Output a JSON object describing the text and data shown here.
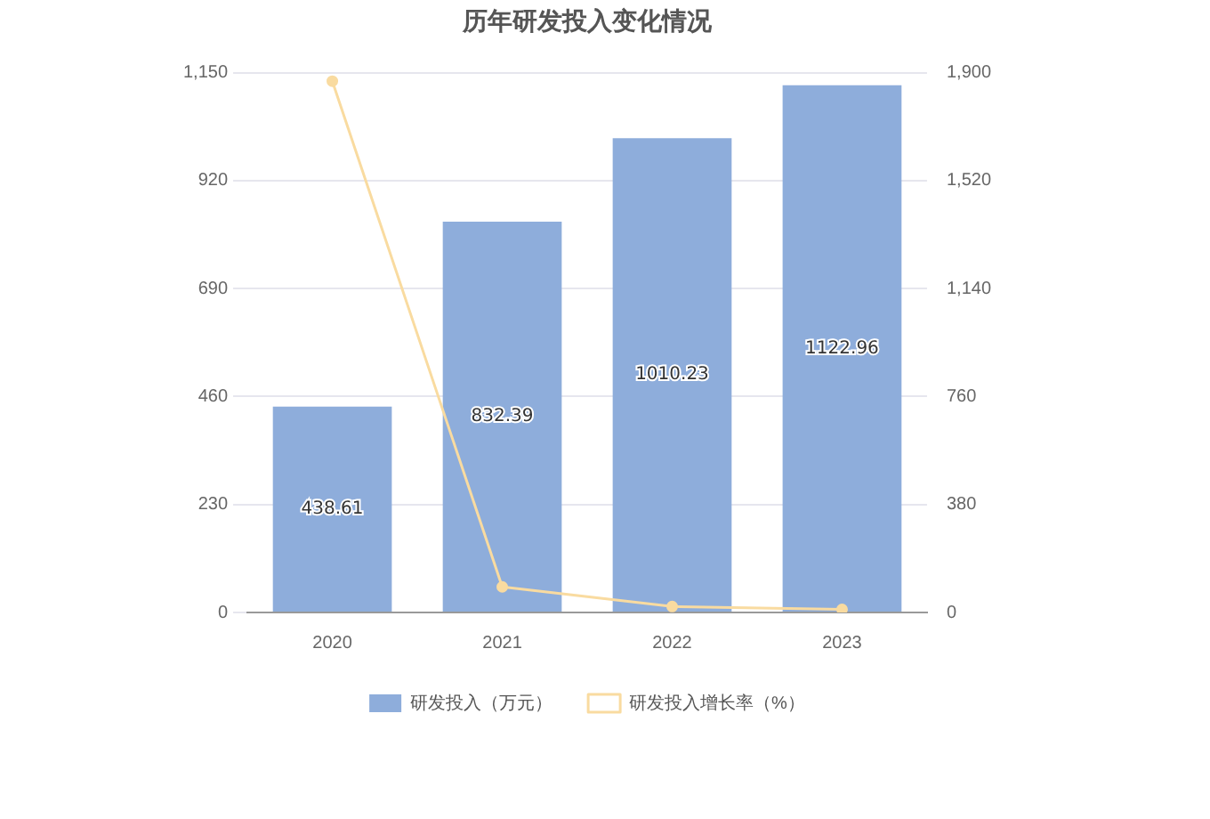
{
  "chart_data": {
    "type": "bar",
    "title": "历年研发投入变化情况",
    "categories": [
      "2020",
      "2021",
      "2022",
      "2023"
    ],
    "series": [
      {
        "name": "研发投入（万元）",
        "color": "#8eaddb",
        "values": [
          438.61,
          832.39,
          1010.23,
          1122.96
        ]
      },
      {
        "name": "研发投入增长率（%）",
        "type": "line",
        "axis": "y2",
        "color": "#f9dba0",
        "values": [
          1870,
          90,
          21,
          11
        ]
      }
    ],
    "ylim": [
      0,
      1150
    ],
    "yticks": [
      0,
      230,
      460,
      690,
      920,
      {
        "value": 1150,
        "label": "1,150"
      }
    ],
    "y2lim": [
      0,
      1900
    ],
    "y2ticks": [
      0,
      380,
      760,
      {
        "value": 1140,
        "label": "1,140"
      },
      {
        "value": 1520,
        "label": "1,520"
      },
      {
        "value": 1900,
        "label": "1,900"
      }
    ],
    "grid": "y",
    "legend": "bottom",
    "marker": "circle",
    "line_style": "solid",
    "value_labels": [
      "438.61",
      "832.39",
      "1010.23",
      "1122.96"
    ]
  }
}
